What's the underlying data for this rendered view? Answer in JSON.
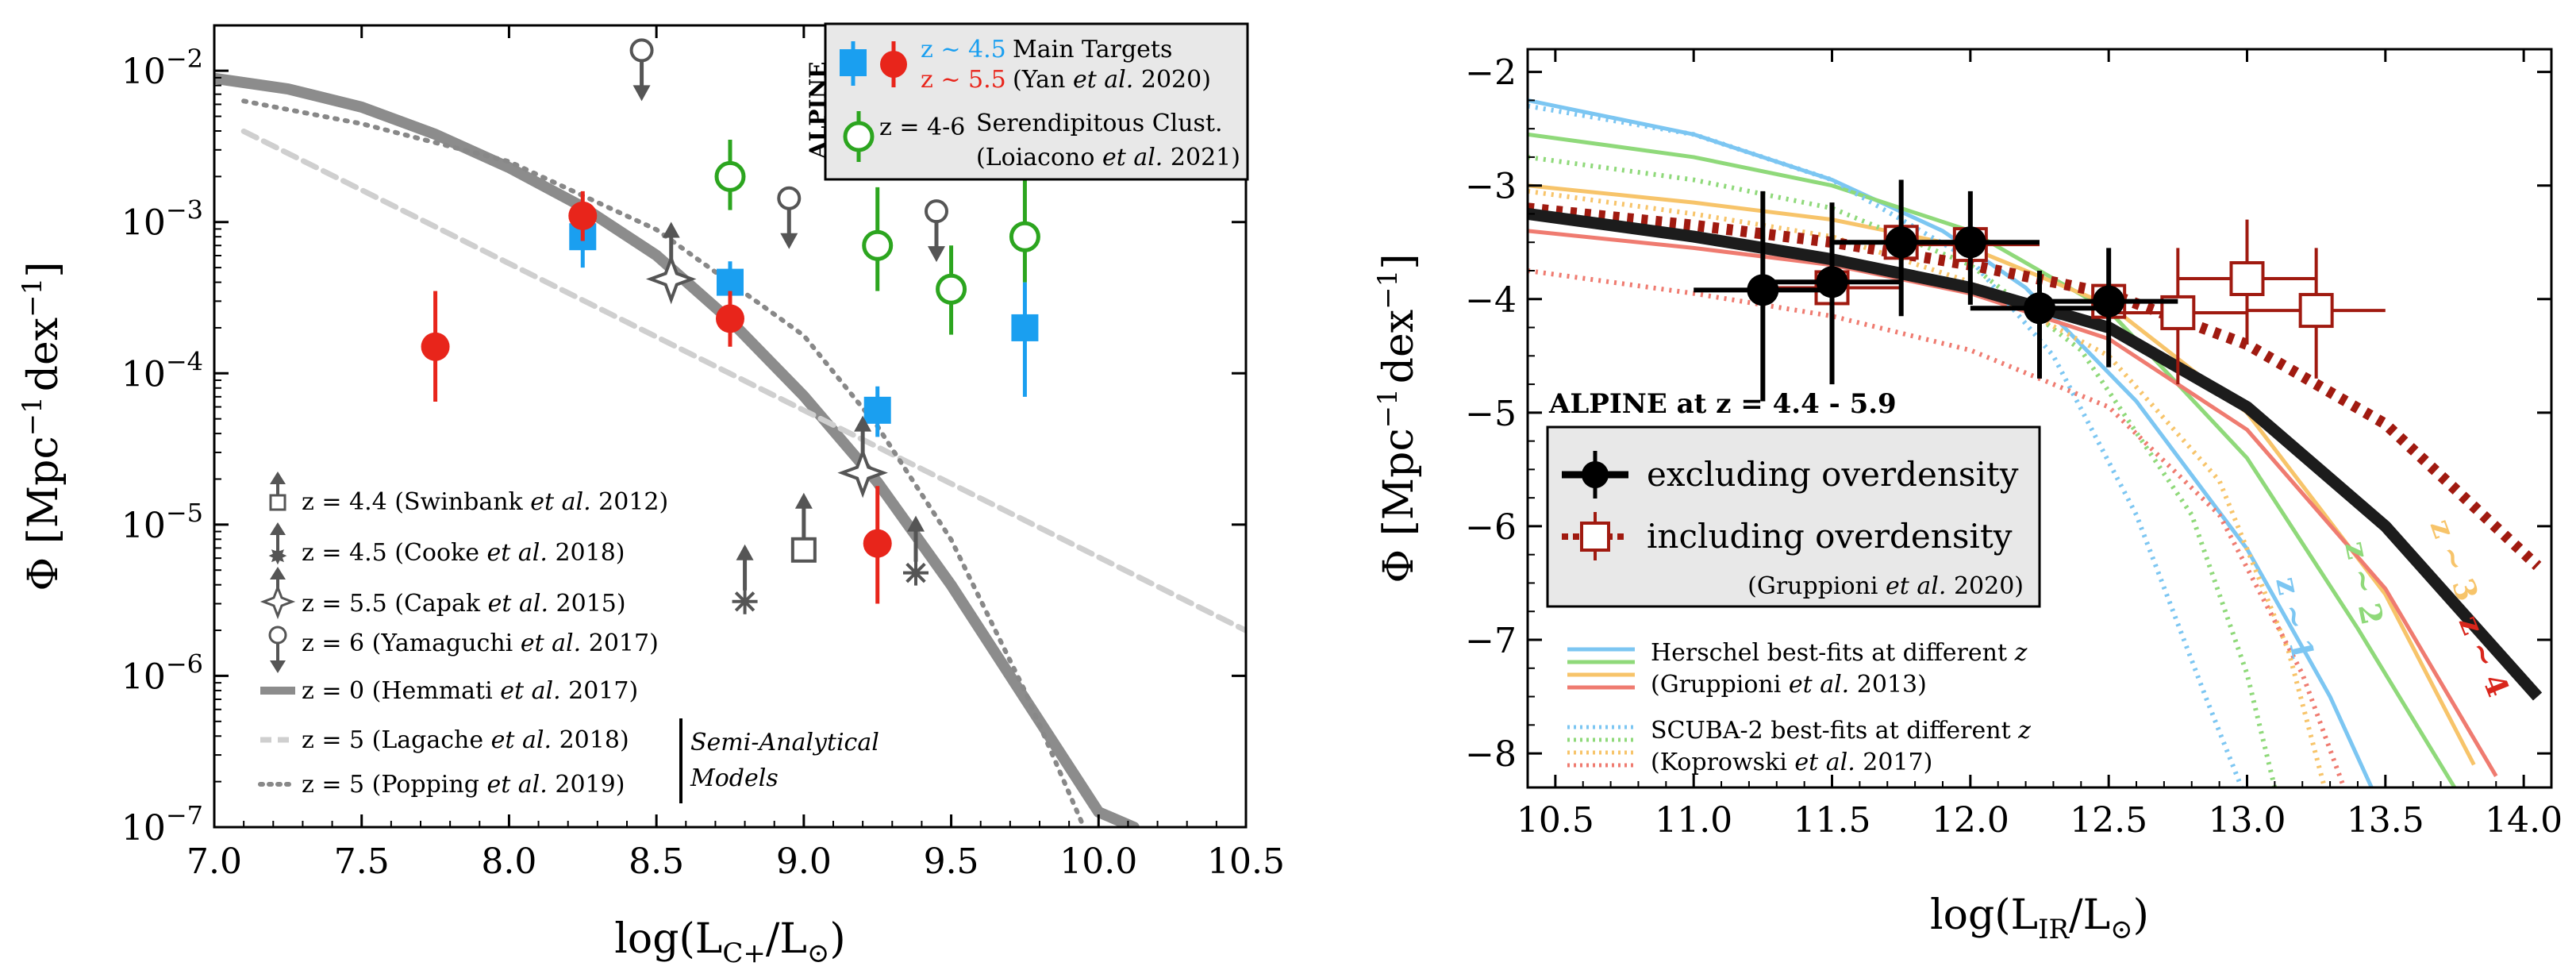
{
  "chart_data": [
    {
      "type": "scatter",
      "title": "",
      "xlabel": "log(L",
      "xlabel_sub": "C+",
      "xlabel_end": "/L",
      "ylabel": "Φ [Mpc",
      "ylabel_mid": "dex",
      "xlim": [
        7.0,
        10.5
      ],
      "ylim_log10": [
        -7,
        -1.7
      ],
      "x_ticks": [
        "7.0",
        "7.5",
        "8.0",
        "8.5",
        "9.0",
        "9.5",
        "10.0",
        "10.5"
      ],
      "y_ticks": [
        {
          "base": "10",
          "exp": "-7"
        },
        {
          "base": "10",
          "exp": "-6"
        },
        {
          "base": "10",
          "exp": "-5"
        },
        {
          "base": "10",
          "exp": "-4"
        },
        {
          "base": "10",
          "exp": "-3"
        },
        {
          "base": "10",
          "exp": "-2"
        }
      ],
      "colors": {
        "blue": "#1a9ff0",
        "red": "#e8251b",
        "green": "#2ca51f",
        "gray": "#555555",
        "hemmati": "#8c8c8c",
        "lagache": "#cfcfcf",
        "popping": "#888888"
      },
      "series": [
        {
          "name": "z ~ 4.5 Main Targets",
          "marker": "square",
          "color": "#1a9ff0",
          "points": [
            {
              "x": 8.25,
              "y": 0.0008,
              "ylo": 0.0005,
              "yhi": 0.0012
            },
            {
              "x": 8.75,
              "y": 0.0004,
              "ylo": 0.00028,
              "yhi": 0.00055
            },
            {
              "x": 9.25,
              "y": 5.7e-05,
              "ylo": 3.8e-05,
              "yhi": 8.2e-05
            },
            {
              "x": 9.75,
              "y": 0.0002,
              "ylo": 7e-05,
              "yhi": 0.0004
            }
          ]
        },
        {
          "name": "z ~ 5.5 Main Targets",
          "marker": "circle",
          "color": "#e8251b",
          "points": [
            {
              "x": 7.75,
              "y": 0.00015,
              "ylo": 6.5e-05,
              "yhi": 0.00035
            },
            {
              "x": 8.25,
              "y": 0.0011,
              "ylo": 0.00075,
              "yhi": 0.0016
            },
            {
              "x": 8.75,
              "y": 0.00023,
              "ylo": 0.00015,
              "yhi": 0.00035
            },
            {
              "x": 9.25,
              "y": 7.5e-06,
              "ylo": 3e-06,
              "yhi": 1.8e-05
            }
          ]
        },
        {
          "name": "z = 4-6 Serendipitous Clust.",
          "marker": "open-circle",
          "color": "#2ca51f",
          "points": [
            {
              "x": 8.75,
              "y": 0.002,
              "ylo": 0.0012,
              "yhi": 0.0035
            },
            {
              "x": 9.25,
              "y": 0.0007,
              "ylo": 0.00035,
              "yhi": 0.0017
            },
            {
              "x": 9.5,
              "y": 0.00036,
              "ylo": 0.00018,
              "yhi": 0.0007
            },
            {
              "x": 9.75,
              "y": 0.0008,
              "ylo": 0.0004,
              "yhi": 0.0019
            }
          ]
        },
        {
          "name": "z = 4.4 (Swinbank et al. 2012)",
          "marker": "open-square-upper",
          "color": "#555555",
          "points": [
            {
              "x": 9.0,
              "y": 6.8e-06
            }
          ]
        },
        {
          "name": "z = 4.5 (Cooke et al. 2018)",
          "marker": "asterisk-upper",
          "color": "#555555",
          "points": [
            {
              "x": 8.8,
              "y": 3.1e-06
            },
            {
              "x": 9.38,
              "y": 4.8e-06
            }
          ]
        },
        {
          "name": "z = 5.5 (Capak et al. 2015)",
          "marker": "star4-upper",
          "color": "#555555",
          "points": [
            {
              "x": 8.55,
              "y": 0.00042
            },
            {
              "x": 9.2,
              "y": 2.2e-05
            }
          ]
        },
        {
          "name": "z = 6 (Yamaguchi et al. 2017)",
          "marker": "open-circle-lower",
          "color": "#555555",
          "points": [
            {
              "x": 8.45,
              "y": 0.0095
            },
            {
              "x": 8.95,
              "y": 0.001
            },
            {
              "x": 9.45,
              "y": 0.00082
            }
          ]
        }
      ],
      "curves": [
        {
          "name": "z = 0 (Hemmati et al. 2017)",
          "style": "solid-thick",
          "color": "#8c8c8c",
          "x": [
            7.0,
            7.25,
            7.5,
            7.75,
            8.0,
            8.25,
            8.5,
            8.75,
            9.0,
            9.25,
            9.5,
            9.75,
            10.0,
            10.12
          ],
          "y_log10": [
            -2.05,
            -2.12,
            -2.24,
            -2.42,
            -2.64,
            -2.9,
            -3.22,
            -3.65,
            -4.15,
            -4.72,
            -5.4,
            -6.15,
            -6.9,
            -7.0
          ]
        },
        {
          "name": "z = 5 (Lagache et al. 2018)",
          "style": "dashed",
          "color": "#cfcfcf",
          "x": [
            7.1,
            10.5
          ],
          "y_log10": [
            -2.4,
            -5.7
          ]
        },
        {
          "name": "z = 5 (Popping et al. 2019)",
          "style": "dotted",
          "color": "#888888",
          "x": [
            7.1,
            7.5,
            8.0,
            8.5,
            9.0,
            9.25,
            9.5,
            9.75,
            9.95
          ],
          "y_log10": [
            -2.2,
            -2.35,
            -2.6,
            -3.05,
            -3.75,
            -4.35,
            -5.1,
            -6.1,
            -7.0
          ]
        }
      ],
      "legend_main": {
        "side_label": "ALPINE",
        "row1_blue": "z ~ 4.5",
        "row1_red": "z ~ 5.5",
        "row1_text_a": "Main Targets",
        "row1_text_b_pre": "(Yan",
        "row1_text_b_it": "et al.",
        "row1_text_b_post": "2020)",
        "row2_text_a": "z = 4-6",
        "row2_text_a2": "Serendipitous Clust.",
        "row2_text_b_pre": "(Loiacono",
        "row2_text_b_it": "et al.",
        "row2_text_b_post": "2021)"
      },
      "legend_lower": [
        {
          "pre": "z = 4.4 (Swinbank",
          "it": "et al.",
          "post": "2012)"
        },
        {
          "pre": "z = 4.5 (Cooke",
          "it": "et al.",
          "post": "2018)"
        },
        {
          "pre": "z = 5.5 (Capak",
          "it": "et al.",
          "post": "2015)"
        },
        {
          "pre": "z = 6 (Yamaguchi",
          "it": "et al.",
          "post": "2017)"
        },
        {
          "pre": "z = 0 (Hemmati",
          "it": "et al.",
          "post": "2017)"
        },
        {
          "pre": "z = 5 (Lagache",
          "it": "et al.",
          "post": "2018)"
        },
        {
          "pre": "z = 5 (Popping",
          "it": "et al.",
          "post": "2019)"
        }
      ],
      "semi_analytical_1": "Semi-Analytical",
      "semi_analytical_2": "Models"
    },
    {
      "type": "line",
      "title": "",
      "xlabel": "log(L",
      "xlabel_sub": "IR",
      "xlabel_end": "/L",
      "ylabel": "Φ [Mpc",
      "ylabel_mid": "dex",
      "xlim": [
        10.4,
        14.1
      ],
      "ylim": [
        -8.3,
        -1.8
      ],
      "x_ticks": [
        "10.5",
        "11.0",
        "11.5",
        "12.0",
        "12.5",
        "13.0",
        "13.5",
        "14.0"
      ],
      "y_ticks": [
        "−2",
        "−3",
        "−4",
        "−5",
        "−6",
        "−7",
        "−8"
      ],
      "colors": {
        "black": "#1c1c1c",
        "darkred": "#a01a10",
        "blue": "#7cc6f2",
        "green": "#8fd97a",
        "orange": "#f7c46a",
        "red": "#ef7b70"
      },
      "series": [
        {
          "name": "excluding overdensity",
          "marker": "filled-circle",
          "color": "#000000",
          "points": [
            {
              "x": 11.25,
              "y": -3.92,
              "xlo": 11.0,
              "xhi": 11.5,
              "ylo": -4.9,
              "yhi": -3.05
            },
            {
              "x": 11.5,
              "y": -3.85,
              "xlo": 11.25,
              "xhi": 11.75,
              "ylo": -4.75,
              "yhi": -3.15
            },
            {
              "x": 11.75,
              "y": -3.5,
              "xlo": 11.5,
              "xhi": 12.0,
              "ylo": -4.15,
              "yhi": -2.95
            },
            {
              "x": 12.0,
              "y": -3.5,
              "xlo": 11.75,
              "xhi": 12.25,
              "ylo": -4.05,
              "yhi": -3.05
            },
            {
              "x": 12.25,
              "y": -4.08,
              "xlo": 12.0,
              "xhi": 12.5,
              "ylo": -4.7,
              "yhi": -3.75
            },
            {
              "x": 12.5,
              "y": -4.02,
              "xlo": 12.25,
              "xhi": 12.75,
              "ylo": -4.6,
              "yhi": -3.55
            }
          ]
        },
        {
          "name": "including overdensity",
          "marker": "open-square",
          "color": "#a01a10",
          "points": [
            {
              "x": 11.5,
              "y": -3.9,
              "xlo": 11.25,
              "xhi": 11.75,
              "ylo": -4.4,
              "yhi": -3.45
            },
            {
              "x": 11.75,
              "y": -3.5,
              "xlo": 11.5,
              "xhi": 12.0,
              "ylo": -3.9,
              "yhi": -3.15
            },
            {
              "x": 12.0,
              "y": -3.52,
              "xlo": 11.75,
              "xhi": 12.25,
              "ylo": -3.9,
              "yhi": -3.15
            },
            {
              "x": 12.5,
              "y": -4.02,
              "xlo": 12.25,
              "xhi": 12.75,
              "ylo": -4.4,
              "yhi": -3.65
            },
            {
              "x": 12.75,
              "y": -4.12,
              "xlo": 12.5,
              "xhi": 13.0,
              "ylo": -4.75,
              "yhi": -3.55
            },
            {
              "x": 13.0,
              "y": -3.82,
              "xlo": 12.75,
              "xhi": 13.25,
              "ylo": -4.4,
              "yhi": -3.3
            },
            {
              "x": 13.25,
              "y": -4.1,
              "xlo": 13.0,
              "xhi": 13.5,
              "ylo": -4.7,
              "yhi": -3.55
            }
          ]
        }
      ],
      "curves": [
        {
          "name": "best-fit excluding",
          "style": "solid-thick",
          "color": "#1c1c1c",
          "x": [
            10.4,
            11.0,
            11.5,
            12.0,
            12.5,
            13.0,
            13.5,
            14.05
          ],
          "y": [
            -3.25,
            -3.45,
            -3.65,
            -3.9,
            -4.25,
            -4.95,
            -6.0,
            -7.5
          ]
        },
        {
          "name": "best-fit including",
          "style": "dotted-thick",
          "color": "#a01a10",
          "x": [
            10.4,
            11.0,
            11.5,
            12.0,
            12.5,
            13.0,
            13.5,
            14.05
          ],
          "y": [
            -3.2,
            -3.35,
            -3.5,
            -3.7,
            -3.95,
            -4.4,
            -5.1,
            -6.35
          ]
        },
        {
          "name": "Herschel z~1",
          "style": "solid",
          "color": "#7cc6f2",
          "x": [
            10.4,
            11.0,
            11.5,
            11.9,
            12.2,
            12.6,
            13.0,
            13.3,
            13.45
          ],
          "y": [
            -2.25,
            -2.55,
            -2.95,
            -3.4,
            -3.9,
            -4.9,
            -6.2,
            -7.5,
            -8.3
          ]
        },
        {
          "name": "Herschel z~2",
          "style": "solid",
          "color": "#8fd97a",
          "x": [
            10.4,
            11.0,
            11.5,
            12.0,
            12.5,
            13.0,
            13.4,
            13.75
          ],
          "y": [
            -2.55,
            -2.75,
            -3.0,
            -3.4,
            -4.1,
            -5.4,
            -6.9,
            -8.3
          ]
        },
        {
          "name": "Herschel z~3",
          "style": "solid",
          "color": "#f7c46a",
          "x": [
            10.4,
            11.0,
            11.5,
            12.0,
            12.5,
            13.0,
            13.5,
            13.82
          ],
          "y": [
            -3.0,
            -3.15,
            -3.3,
            -3.55,
            -4.05,
            -5.0,
            -6.6,
            -8.1
          ]
        },
        {
          "name": "Herschel z~4",
          "style": "solid",
          "color": "#ef7b70",
          "x": [
            10.4,
            11.0,
            11.5,
            12.0,
            12.5,
            13.0,
            13.5,
            13.9
          ],
          "y": [
            -3.4,
            -3.55,
            -3.7,
            -3.95,
            -4.35,
            -5.15,
            -6.55,
            -8.2
          ]
        },
        {
          "name": "SCUBA-2 z~1",
          "style": "dotted",
          "color": "#7cc6f2",
          "x": [
            10.4,
            11.0,
            11.5,
            12.0,
            12.3,
            12.6,
            12.85,
            12.98
          ],
          "y": [
            -2.3,
            -2.55,
            -2.95,
            -3.65,
            -4.5,
            -5.9,
            -7.5,
            -8.3
          ]
        },
        {
          "name": "SCUBA-2 z~2",
          "style": "dotted",
          "color": "#8fd97a",
          "x": [
            10.4,
            11.0,
            11.5,
            12.0,
            12.4,
            12.8,
            13.0,
            13.1
          ],
          "y": [
            -2.75,
            -2.95,
            -3.2,
            -3.7,
            -4.45,
            -5.9,
            -7.3,
            -8.3
          ]
        },
        {
          "name": "SCUBA-2 z~3",
          "style": "dotted",
          "color": "#f7c46a",
          "x": [
            10.4,
            11.0,
            11.5,
            12.0,
            12.5,
            12.9,
            13.15,
            13.28
          ],
          "y": [
            -3.05,
            -3.25,
            -3.45,
            -3.85,
            -4.5,
            -5.6,
            -7.1,
            -8.3
          ]
        },
        {
          "name": "SCUBA-2 z~4",
          "style": "dotted",
          "color": "#ef7b70",
          "x": [
            10.4,
            11.0,
            11.5,
            12.0,
            12.5,
            12.9,
            13.2,
            13.35
          ],
          "y": [
            -3.75,
            -3.95,
            -4.15,
            -4.45,
            -4.95,
            -5.9,
            -7.3,
            -8.3
          ]
        }
      ],
      "z_labels": [
        {
          "text": "z ~ 1",
          "color": "#7cc6f2"
        },
        {
          "text": "z ~ 2",
          "color": "#8fd97a"
        },
        {
          "text": "z ~ 3",
          "color": "#f7c46a"
        },
        {
          "text": "z ~ 4",
          "color": "#d9261c"
        }
      ],
      "alpine_label": "ALPINE at z = 4.4 - 5.9",
      "legend_excluding": "excluding overdensity",
      "legend_including": "including overdensity",
      "legend_gruppioni_pre": "(Gruppioni",
      "legend_gruppioni_it": "et al.",
      "legend_gruppioni_post": "2020)",
      "herschel_text_1": "Herschel best-fits at different",
      "herschel_text_1_z": "z",
      "herschel_text_2_pre": "(Gruppioni",
      "herschel_text_2_it": "et al.",
      "herschel_text_2_post": "2013)",
      "scuba_text_1": "SCUBA-2 best-fits at different",
      "scuba_text_1_z": "z",
      "scuba_text_2_pre": "(Koprowski",
      "scuba_text_2_it": "et al.",
      "scuba_text_2_post": "2017)"
    }
  ]
}
